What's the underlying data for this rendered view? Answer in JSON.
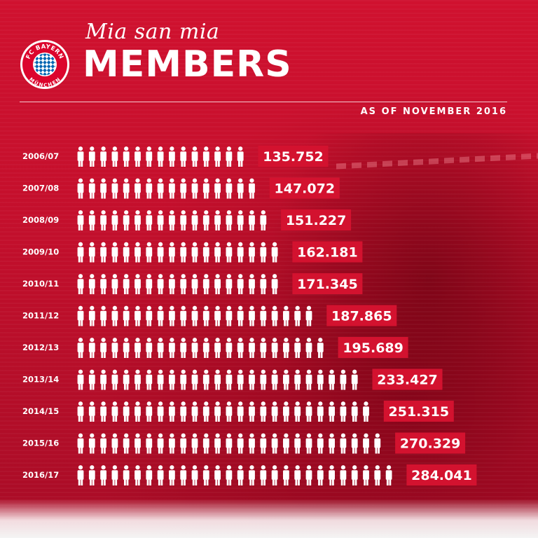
{
  "header": {
    "tagline": "Mia san mia",
    "title": "MEMBERS",
    "subtitle": "AS OF NOVEMBER 2016"
  },
  "logo": {
    "icon": "fc-bayern-crest-icon",
    "text_top": "FC BAYERN",
    "text_bottom": "MÜNCHEN"
  },
  "colors": {
    "background": "#c8102e",
    "box": "#d3122f",
    "text": "#ffffff",
    "logo_blue": "#0066b2"
  },
  "chart_data": {
    "type": "bar",
    "title": "MEMBERS",
    "subtitle": "AS OF NOVEMBER 2016",
    "categories": [
      "2006/07",
      "2007/08",
      "2008/09",
      "2009/10",
      "2010/11",
      "2011/12",
      "2012/13",
      "2013/14",
      "2014/15",
      "2015/16",
      "2016/17"
    ],
    "values": [
      135752,
      147072,
      151227,
      162181,
      171345,
      187865,
      195689,
      233427,
      251315,
      270329,
      284041
    ],
    "value_labels": [
      "135.752",
      "147.072",
      "151.227",
      "162.181",
      "171.345",
      "187.865",
      "195.689",
      "233.427",
      "251.315",
      "270.329",
      "284.041"
    ],
    "icon_counts": [
      15,
      16,
      17,
      18,
      18,
      21,
      22,
      25,
      26,
      27,
      28
    ],
    "mark_icon": "person-icon"
  }
}
